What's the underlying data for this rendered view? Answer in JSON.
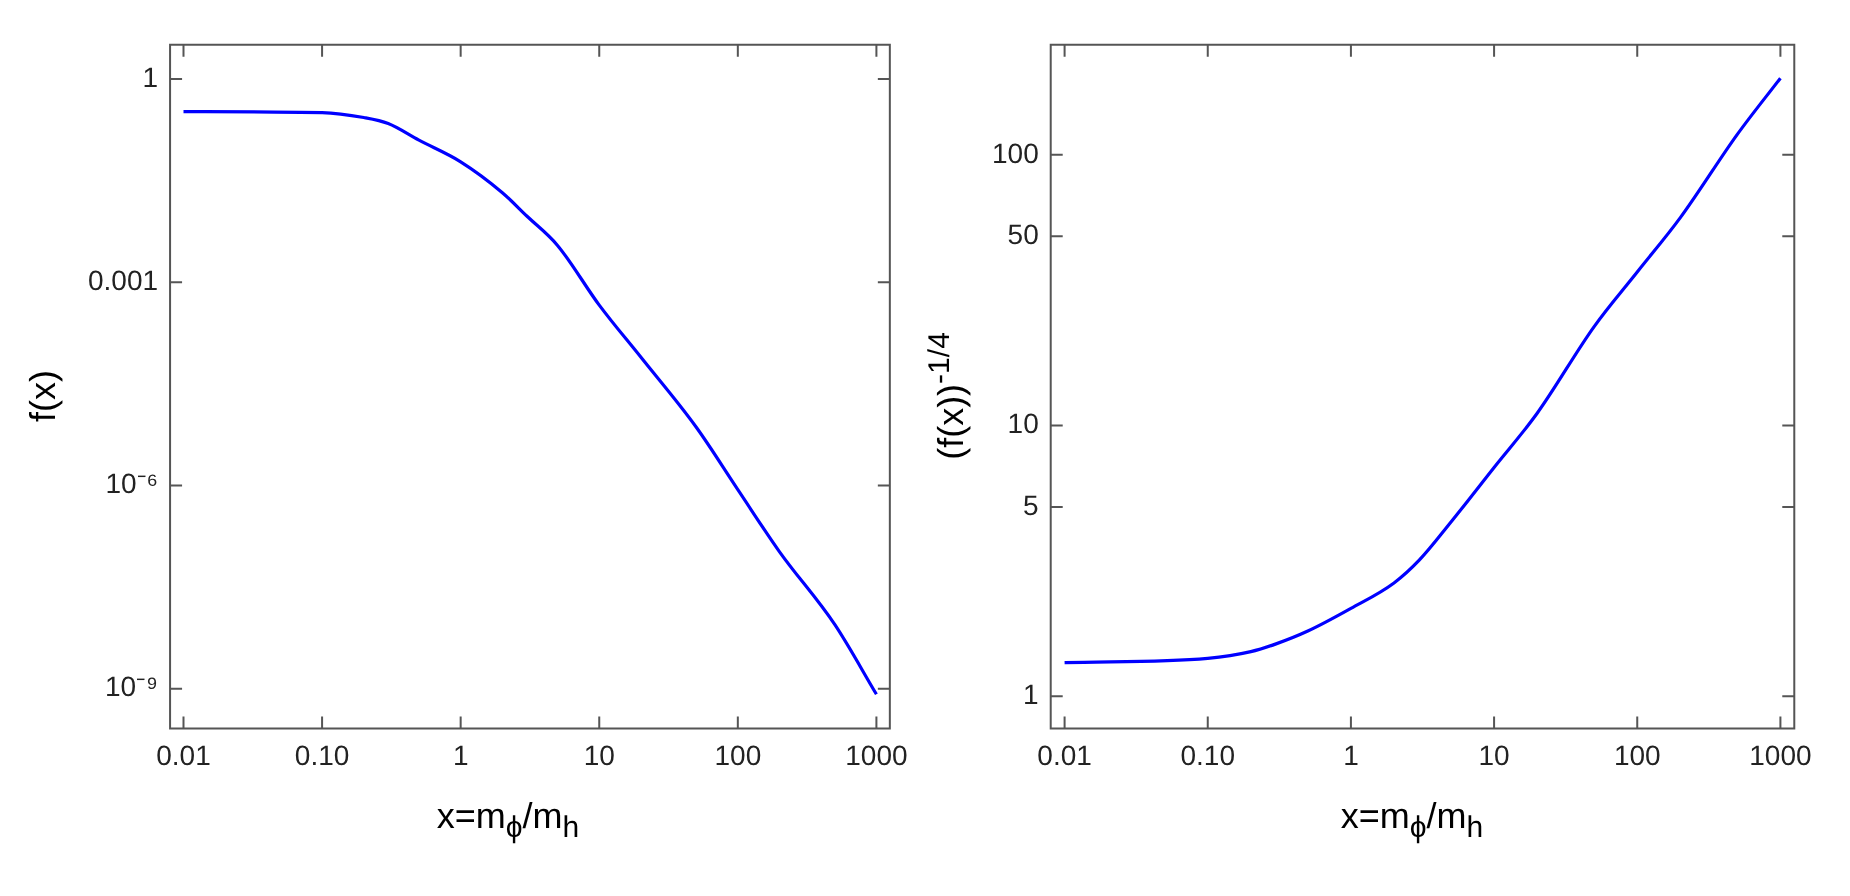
{
  "chart_data": [
    {
      "type": "line",
      "x": [
        0.01,
        0.1,
        0.2,
        0.3,
        0.5,
        1,
        2,
        3,
        5,
        10,
        20,
        50,
        100,
        200,
        500,
        1000
      ],
      "series": [
        {
          "color": "#0000ff",
          "values": [
            0.33,
            0.32,
            0.27,
            0.22,
            0.125,
            0.06,
            0.021,
            0.0095,
            0.0035,
            0.00046,
            7.8e-05,
            7.3e-06,
            8.7e-07,
            1.05e-07,
            8.9e-09,
            8.3e-10
          ]
        }
      ],
      "xlabel": "x=m$_{ϕ}$/m$_{h}$",
      "ylabel": "f(x)",
      "log": "xy",
      "grid": false,
      "marker": "none",
      "line_style": "solid",
      "xlim": [
        0.008,
        1250
      ],
      "ylim": [
        2.6e-10,
        3.2
      ],
      "xticks": [
        0.01,
        {
          "value": 0.1,
          "label": "0.10"
        },
        1,
        10,
        100,
        1000
      ],
      "yticks": [
        1,
        0.001,
        {
          "value": 1e-06,
          "label": "10⁻⁶"
        },
        {
          "value": 1e-09,
          "label": "10⁻⁹"
        }
      ]
    },
    {
      "type": "line",
      "x": [
        0.01,
        0.1,
        0.2,
        0.3,
        0.5,
        1,
        2,
        3,
        5,
        10,
        20,
        50,
        100,
        200,
        500,
        1000
      ],
      "series": [
        {
          "color": "#0000ff",
          "values": [
            1.33,
            1.38,
            1.46,
            1.56,
            1.74,
            2.11,
            2.62,
            3.18,
            4.4,
            7.0,
            11.1,
            23.2,
            36.9,
            58.6,
            119,
            192
          ]
        }
      ],
      "xlabel": "x=m$_{ϕ}$/m$_{h}$",
      "ylabel": "(f(x))$^{-1/4}$",
      "log": "xy",
      "grid": false,
      "marker": "none",
      "line_style": "solid",
      "xlim": [
        0.008,
        1250
      ],
      "ylim": [
        0.76,
        255
      ],
      "xticks": [
        0.01,
        {
          "value": 0.1,
          "label": "0.10"
        },
        1,
        10,
        100,
        1000
      ],
      "yticks": [
        1,
        5,
        10,
        50,
        100
      ]
    }
  ]
}
